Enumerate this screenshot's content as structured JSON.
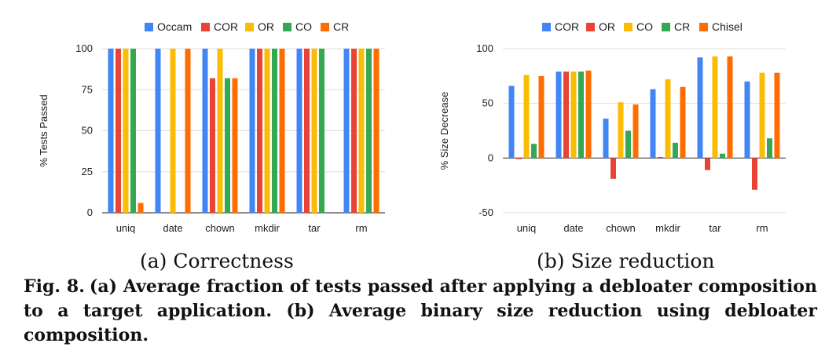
{
  "chart_data": [
    {
      "type": "bar",
      "caption": "(a) Correctness",
      "title": "",
      "xlabel": "",
      "ylabel": "% Tests Passed",
      "ylim": [
        0,
        100
      ],
      "yticks": [
        0,
        25,
        50,
        75,
        100
      ],
      "grid": true,
      "legend": "top",
      "categories": [
        "uniq",
        "date",
        "chown",
        "mkdir",
        "tar",
        "rm"
      ],
      "series": [
        {
          "name": "Occam",
          "color": "#4285F4",
          "values": [
            100,
            100,
            100,
            100,
            100,
            100
          ]
        },
        {
          "name": "COR",
          "color": "#EA4335",
          "values": [
            100,
            0,
            82,
            100,
            100,
            100
          ]
        },
        {
          "name": "OR",
          "color": "#FBBC04",
          "values": [
            100,
            100,
            100,
            100,
            100,
            100
          ]
        },
        {
          "name": "CO",
          "color": "#34A853",
          "values": [
            100,
            0,
            82,
            100,
            100,
            100
          ]
        },
        {
          "name": "CR",
          "color": "#FF6D01",
          "values": [
            6,
            100,
            82,
            100,
            0,
            100
          ]
        }
      ]
    },
    {
      "type": "bar",
      "caption": "(b) Size reduction",
      "title": "",
      "xlabel": "",
      "ylabel": "% Size Decrease",
      "ylim": [
        -50,
        100
      ],
      "yticks": [
        -50,
        0,
        50,
        100
      ],
      "grid": true,
      "legend": "top",
      "categories": [
        "uniq",
        "date",
        "chown",
        "mkdir",
        "tar",
        "rm"
      ],
      "series": [
        {
          "name": "COR",
          "color": "#4285F4",
          "values": [
            66,
            79,
            36,
            63,
            92,
            70
          ]
        },
        {
          "name": "OR",
          "color": "#EA4335",
          "values": [
            -1,
            79,
            -19,
            1,
            -11,
            -29
          ]
        },
        {
          "name": "CO",
          "color": "#FBBC04",
          "values": [
            76,
            79,
            51,
            72,
            93,
            78
          ]
        },
        {
          "name": "CR",
          "color": "#34A853",
          "values": [
            13,
            79,
            25,
            14,
            4,
            18
          ]
        },
        {
          "name": "Chisel",
          "color": "#FF6D01",
          "values": [
            75,
            80,
            49,
            65,
            93,
            78
          ]
        }
      ]
    }
  ],
  "figure_caption": {
    "label": "Fig. 8.",
    "text": "(a) Average fraction of tests passed after applying a debloater composition to a target application. (b) Average binary size reduction using debloater composition."
  }
}
